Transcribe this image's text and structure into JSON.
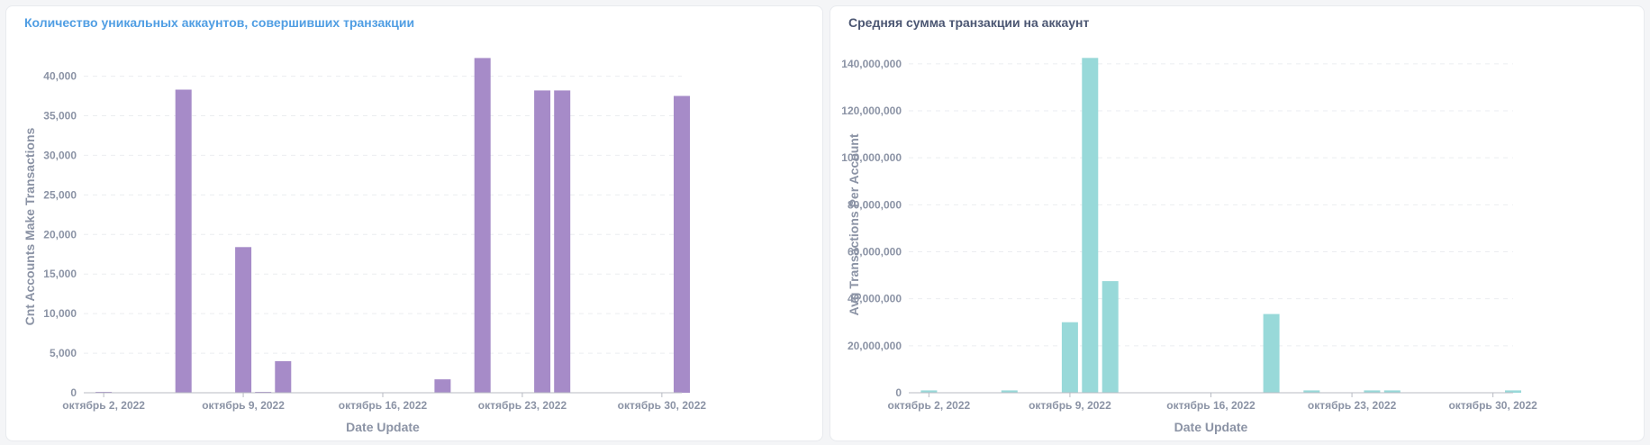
{
  "chart_data": [
    {
      "type": "bar",
      "title": "Количество уникальных аккаунтов, совершивших транзакции",
      "xlabel": "Date Update",
      "ylabel": "Cnt Accounts Make Transactions",
      "ylim": [
        0,
        42000
      ],
      "yticks": [
        0,
        5000,
        10000,
        15000,
        20000,
        25000,
        30000,
        35000,
        40000
      ],
      "ytick_labels": [
        "0",
        "5,000",
        "10,000",
        "15,000",
        "20,000",
        "25,000",
        "30,000",
        "35,000",
        "40,000"
      ],
      "xlim": [
        "2022-10-01",
        "2022-10-31"
      ],
      "xticks": [
        "2022-10-02",
        "2022-10-09",
        "2022-10-16",
        "2022-10-23",
        "2022-10-30"
      ],
      "xtick_labels": [
        "октябрь 2, 2022",
        "октябрь 9, 2022",
        "октябрь 16, 2022",
        "октябрь 23, 2022",
        "октябрь 30, 2022"
      ],
      "grid": true,
      "color": "#a68bc8",
      "x": [
        "2022-10-02",
        "2022-10-06",
        "2022-10-09",
        "2022-10-10",
        "2022-10-11",
        "2022-10-19",
        "2022-10-21",
        "2022-10-24",
        "2022-10-25",
        "2022-10-31"
      ],
      "values": [
        100,
        38300,
        18400,
        100,
        4000,
        1700,
        42300,
        38200,
        38200,
        37500
      ]
    },
    {
      "type": "bar",
      "title": "Средняя сумма транзакции на аккаунт",
      "xlabel": "Date Update",
      "ylabel": "Avg Transactions Per Account",
      "ylim": [
        0,
        143000000
      ],
      "yticks": [
        0,
        20000000,
        40000000,
        60000000,
        80000000,
        100000000,
        120000000,
        140000000
      ],
      "ytick_labels": [
        "0",
        "20,000,000",
        "40,000,000",
        "60,000,000",
        "80,000,000",
        "100,000,000",
        "120,000,000",
        "140,000,000"
      ],
      "xlim": [
        "2022-10-01",
        "2022-10-31"
      ],
      "xticks": [
        "2022-10-02",
        "2022-10-09",
        "2022-10-16",
        "2022-10-23",
        "2022-10-30"
      ],
      "xtick_labels": [
        "октябрь 2, 2022",
        "октябрь 9, 2022",
        "октябрь 16, 2022",
        "октябрь 23, 2022",
        "октябрь 30, 2022"
      ],
      "grid": true,
      "color": "#98d9d9",
      "x": [
        "2022-10-02",
        "2022-10-06",
        "2022-10-09",
        "2022-10-10",
        "2022-10-11",
        "2022-10-19",
        "2022-10-21",
        "2022-10-24",
        "2022-10-25",
        "2022-10-31"
      ],
      "values": [
        1000000,
        1000000,
        30000000,
        142500000,
        47500000,
        33500000,
        1000000,
        1000000,
        1000000,
        1000000
      ]
    }
  ]
}
